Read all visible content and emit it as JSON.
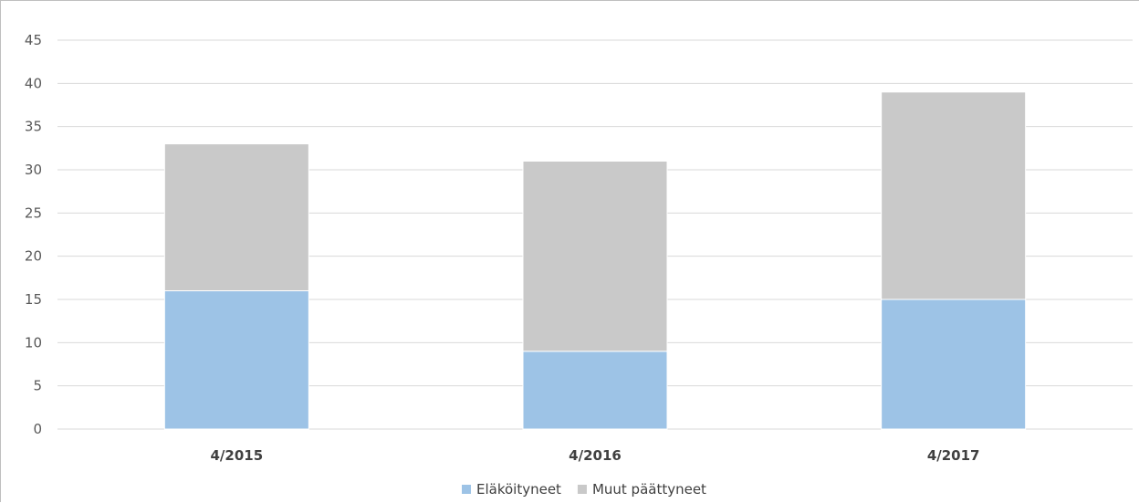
{
  "chart_data": {
    "type": "bar",
    "stacked": true,
    "categories": [
      "4/2015",
      "4/2016",
      "4/2017"
    ],
    "series": [
      {
        "name": "Eläköityneet",
        "values": [
          16,
          9,
          15
        ],
        "color": "#9dc3e6"
      },
      {
        "name": "Muut päättyneet",
        "values": [
          17,
          22,
          24
        ],
        "color": "#c9c9c9"
      }
    ],
    "ylim": [
      0,
      45
    ],
    "yticks": [
      0,
      5,
      10,
      15,
      20,
      25,
      30,
      35,
      40,
      45
    ],
    "grid": true,
    "legend_position": "bottom"
  }
}
